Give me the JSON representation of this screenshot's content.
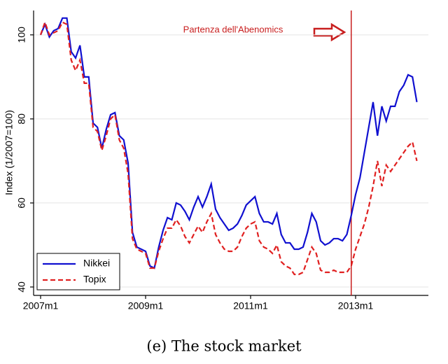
{
  "chart_data": {
    "type": "line",
    "ylabel": "Index (1/2007=100)",
    "caption": "(e) The stock market",
    "categories": [
      "2007m1",
      null,
      null,
      null,
      null,
      null,
      null,
      null,
      null,
      null,
      null,
      null,
      null,
      null,
      null,
      null,
      null,
      null,
      null,
      null,
      null,
      null,
      null,
      null,
      "2009m1",
      null,
      null,
      null,
      null,
      null,
      null,
      null,
      null,
      null,
      null,
      null,
      null,
      null,
      null,
      null,
      null,
      null,
      null,
      null,
      null,
      null,
      null,
      null,
      "2011m1",
      null,
      null,
      null,
      null,
      null,
      null,
      null,
      null,
      null,
      null,
      null,
      null,
      null,
      null,
      null,
      null,
      null,
      null,
      null,
      null,
      null,
      null,
      null,
      "2013m1",
      null,
      null,
      null,
      null,
      null,
      null,
      null,
      null,
      null,
      null,
      null,
      null,
      null,
      null
    ],
    "series": [
      {
        "name": "Nikkei",
        "color": "#1010d0",
        "dash": "solid",
        "values": [
          100,
          102.5,
          99.5,
          101,
          101.5,
          104,
          104,
          96,
          94.5,
          97.5,
          90,
          90,
          79,
          78,
          73,
          77.5,
          81,
          81.5,
          76,
          75,
          69.5,
          53,
          49.5,
          49,
          48.5,
          45,
          44.5,
          49.5,
          53.5,
          56.5,
          56,
          60,
          59.5,
          58,
          56,
          59,
          61.5,
          59,
          61.5,
          64.5,
          58.5,
          56.5,
          55,
          53.5,
          54,
          55,
          57,
          59.5,
          60.5,
          61.5,
          57.5,
          55.5,
          55.5,
          55,
          57.5,
          52.5,
          50.5,
          50.5,
          49,
          49,
          49.5,
          53,
          57.5,
          55.5,
          51,
          50,
          50.5,
          51.5,
          51.5,
          51,
          52.5,
          57,
          62,
          66,
          72,
          78,
          84,
          76,
          83,
          79.5,
          83,
          83,
          86.5,
          88,
          90.5,
          90,
          84
        ]
      },
      {
        "name": "Topix",
        "color": "#e02020",
        "dash": "dashed",
        "values": [
          100,
          103,
          100,
          100.5,
          101,
          103,
          102.5,
          94,
          91.5,
          94,
          88.5,
          88.5,
          78,
          77,
          72.5,
          76,
          80,
          81,
          75,
          73,
          67,
          51.5,
          49,
          48.5,
          48,
          44.5,
          44.5,
          48.5,
          51.5,
          54,
          54,
          56,
          54.5,
          52,
          50.5,
          52.5,
          54.5,
          53,
          55.5,
          57.5,
          52.5,
          50.5,
          49,
          48.5,
          48.5,
          49.5,
          52,
          54,
          55,
          55.5,
          51,
          49.5,
          49,
          48,
          50,
          46,
          45,
          44.5,
          43,
          43,
          43.5,
          46.5,
          49.5,
          48,
          44,
          43.5,
          43.5,
          44,
          43.5,
          43.5,
          43.5,
          45,
          49,
          52,
          55,
          59,
          64,
          70,
          64,
          69,
          67.5,
          69,
          70.5,
          72,
          73.5,
          74.5,
          70
        ]
      }
    ],
    "ylim": [
      38,
      105.8
    ],
    "yticks": [
      40,
      60,
      80,
      100
    ],
    "grid": true,
    "legend": "lower left",
    "annotation": {
      "text": "Partenza dell'Abenomics",
      "category_index": 71,
      "color": "#c81e1e"
    }
  }
}
